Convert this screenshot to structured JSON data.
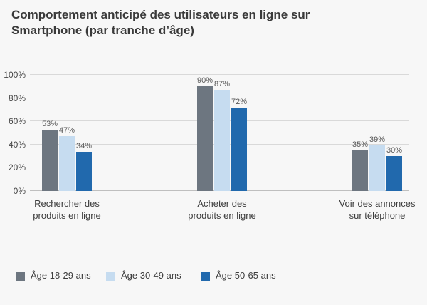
{
  "chart_data": {
    "type": "bar",
    "title": "Comportement anticipé des utilisateurs en ligne sur Smartphone (par tranche d’âge)",
    "categories": [
      "Rechercher des produits en ligne",
      "Acheter des produits en ligne",
      "Voir des annonces sur téléphone"
    ],
    "category_lines": [
      [
        "Rechercher des",
        "produits en ligne"
      ],
      [
        "Acheter des",
        "produits en ligne"
      ],
      [
        "Voir des annonces",
        "sur téléphone"
      ]
    ],
    "series": [
      {
        "name": "Âge 18-29 ans",
        "color": "#6d7680",
        "values": [
          53,
          90,
          35
        ]
      },
      {
        "name": "Âge 30-49 ans",
        "color": "#c6dcf0",
        "values": [
          47,
          87,
          39
        ]
      },
      {
        "name": "Âge 50-65 ans",
        "color": "#2169ad",
        "values": [
          34,
          72,
          30
        ]
      }
    ],
    "value_suffix": "%",
    "xlabel": "",
    "ylabel": "",
    "ylim": [
      0,
      100
    ],
    "yticks": [
      "0%",
      "20%",
      "40%",
      "60%",
      "80%",
      "100%"
    ],
    "grid": true,
    "legend_position": "bottom"
  },
  "colors": {
    "background": "#f7f7f7",
    "title_text": "#3a3a3a",
    "gridline": "#d9d9d9",
    "axis_line": "#bfbfbf",
    "tick_text": "#444444",
    "data_label_text": "#595959",
    "category_text": "#3d3d3d",
    "divider": "#e2e2e2",
    "legend_text": "#3d3d3d"
  }
}
